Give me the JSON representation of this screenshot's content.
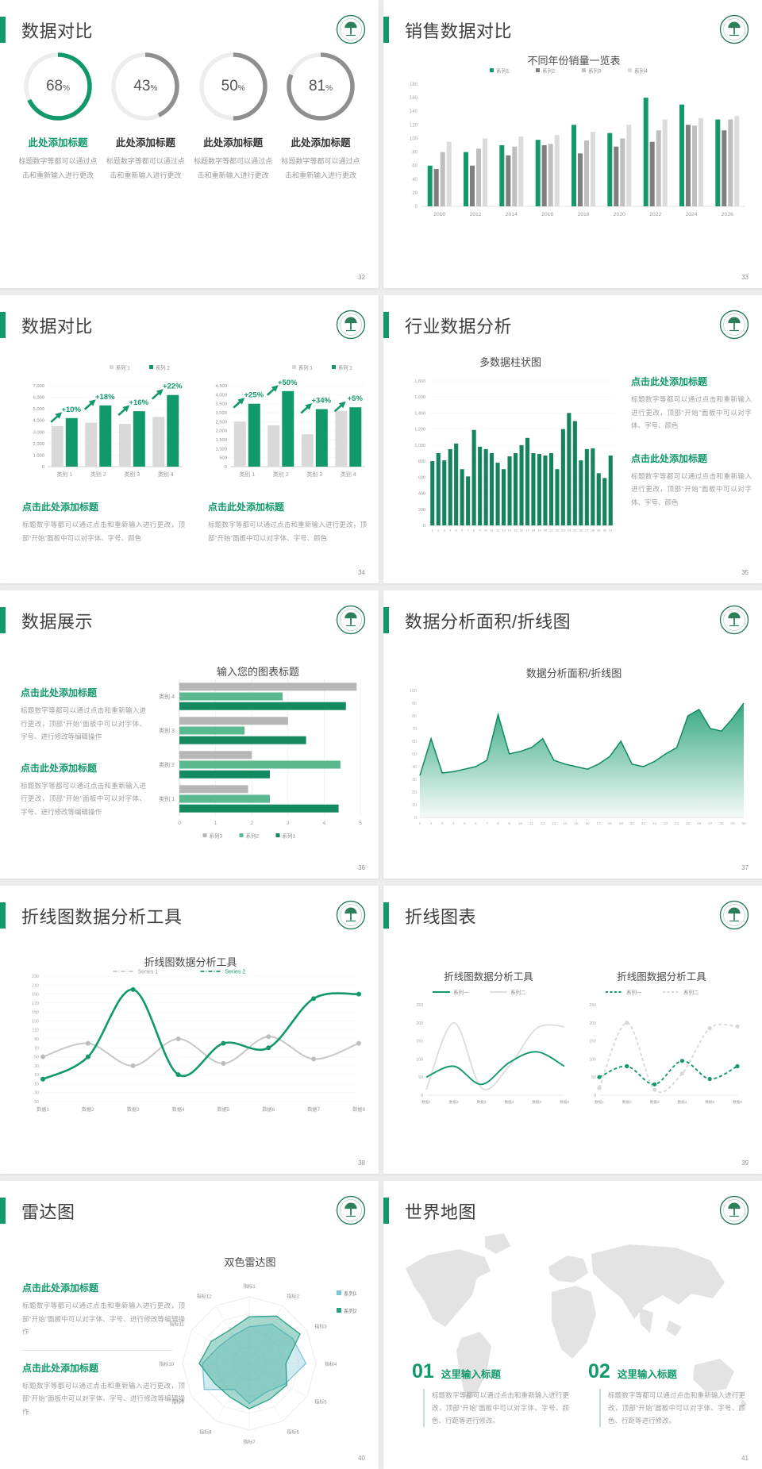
{
  "accent": "#12996b",
  "text_dark": "#3e3e3e",
  "text_gray": "#9f9f9f",
  "slides": [
    {
      "title": "数据对比",
      "page": "32",
      "items": [
        {
          "pct": "68",
          "unit": "%",
          "value": 68,
          "ring": "#12996b",
          "heading_color": "#12996b",
          "heading": "此处添加标题",
          "desc": "标题数字等都可以通过点击和重新输入进行更改"
        },
        {
          "pct": "43",
          "unit": "%",
          "value": 43,
          "ring": "#8f8f8f",
          "heading_color": "#333333",
          "heading": "此处添加标题",
          "desc": "标题数字等都可以通过点击和重新输入进行更改"
        },
        {
          "pct": "50",
          "unit": "%",
          "value": 50,
          "ring": "#8f8f8f",
          "heading_color": "#333333",
          "heading": "此处添加标题",
          "desc": "标题数字等都可以通过点击和重新输入进行更改"
        },
        {
          "pct": "81",
          "unit": "%",
          "value": 81,
          "ring": "#8f8f8f",
          "heading_color": "#333333",
          "heading": "此处添加标题",
          "desc": "标题数字等都可以通过点击和重新输入进行更改"
        }
      ]
    },
    {
      "title": "销售数据对比",
      "page": "33"
    },
    {
      "title": "数据对比",
      "page": "34",
      "blocks": [
        {
          "heading": "点击此处添加标题",
          "body": "标题数字等都可以通过点击和重新输入进行更改，顶部“开始”面板中可以对字体、字号、颜色"
        },
        {
          "heading": "点击此处添加标题",
          "body": "标题数字等都可以通过点击和重新输入进行更改，顶部“开始”面板中可以对字体、字号、颜色"
        }
      ]
    },
    {
      "title": "行业数据分析",
      "page": "35",
      "blocks": [
        {
          "heading": "点击此处添加标题",
          "body": "标题数字等都可以通过点击和重新输入进行更改，顶部“开始”面板中可以对字体、字号、颜色"
        },
        {
          "heading": "点击此处添加标题",
          "body": "标题数字等都可以通过点击和重新输入进行更改，顶部“开始”面板中可以对字体、字号、颜色"
        }
      ]
    },
    {
      "title": "数据展示",
      "page": "36",
      "blocks": [
        {
          "heading": "点击此处添加标题",
          "body": "标题数字等都可以通过点击和重新输入进行更改，顶部“开始”面板中可以对字体、字号、进行修改等编辑操作"
        },
        {
          "heading": "点击此处添加标题",
          "body": "标题数字等都可以通过点击和重新输入进行更改，顶部“开始”面板中可以对字体、字号、进行修改等编辑操作"
        }
      ]
    },
    {
      "title": "数据分析面积/折线图",
      "page": "37"
    },
    {
      "title": "折线图数据分析工具",
      "page": "38"
    },
    {
      "title": "折线图表",
      "page": "39"
    },
    {
      "title": "雷达图",
      "page": "40",
      "blocks": [
        {
          "heading": "点击此处添加标题",
          "body": "标题数字等都可以通过点击和重新输入进行更改，顶部“开始”面板中可以对字体、字号、进行修改等编辑操作"
        },
        {
          "heading": "点击此处添加标题",
          "body": "标题数字等都可以通过点击和重新输入进行更改，顶部“开始”面板中可以对字体、字号、进行修改等编辑操作"
        }
      ]
    },
    {
      "title": "世界地图",
      "page": "41",
      "blocks": [
        {
          "num": "01",
          "heading": "这里输入标题",
          "body": "标题数字等都可以通过点击和重新输入进行更改，顶部“开始”面板中可以对字体、字号、颜色、行距等进行修改。"
        },
        {
          "num": "02",
          "heading": "这里输入标题",
          "body": "标题数字等都可以通过点击和重新输入进行更改，顶部“开始”面板中可以对字体、字号、颜色、行距等进行修改。"
        }
      ]
    }
  ],
  "chart_data": [
    {
      "container": "c-sales",
      "type": "bar",
      "title": "不同年份销量一览表",
      "legend": [
        "系列1",
        "系列2",
        "系列3",
        "系列4"
      ],
      "colors": [
        "#12996b",
        "#7f7f7f",
        "#bfbfbf",
        "#dcdcdc"
      ],
      "categories": [
        "2010",
        "2012",
        "2014",
        "2016",
        "2018",
        "2020",
        "2022",
        "2024",
        "2026"
      ],
      "series": [
        {
          "name": "系列1",
          "values": [
            60,
            80,
            90,
            98,
            120,
            108,
            160,
            150,
            128
          ]
        },
        {
          "name": "系列2",
          "values": [
            55,
            60,
            75,
            90,
            78,
            88,
            95,
            120,
            112
          ]
        },
        {
          "name": "系列3",
          "values": [
            80,
            85,
            88,
            92,
            97,
            100,
            112,
            119,
            128
          ]
        },
        {
          "name": "系列4",
          "values": [
            95,
            100,
            103,
            105,
            110,
            120,
            128,
            130,
            133
          ]
        }
      ],
      "ylim": [
        0,
        180
      ],
      "ystep": 20
    },
    {
      "container": "c-arrow1",
      "type": "bar",
      "legend": [
        "系列 1",
        "系列 2"
      ],
      "colors": [
        "#d9d9d9",
        "#12996b"
      ],
      "categories": [
        "类别 1",
        "类别 2",
        "类别 3",
        "类别 4"
      ],
      "series": [
        {
          "name": "系列 1",
          "values": [
            3500,
            3800,
            3700,
            4300
          ]
        },
        {
          "name": "系列 2",
          "values": [
            4200,
            5300,
            4800,
            6200
          ]
        }
      ],
      "labels": [
        "+10%",
        "+18%",
        "+16%",
        "+22%"
      ],
      "ylim": [
        0,
        7000
      ],
      "ystep": 1000
    },
    {
      "container": "c-arrow2",
      "type": "bar",
      "legend": [
        "系列 1",
        "系列 2"
      ],
      "colors": [
        "#d9d9d9",
        "#12996b"
      ],
      "categories": [
        "类别 1",
        "类别 2",
        "类别 3",
        "类别 4"
      ],
      "series": [
        {
          "name": "系列 1",
          "values": [
            2500,
            2300,
            1800,
            3100
          ]
        },
        {
          "name": "系列 2",
          "values": [
            3500,
            4200,
            3200,
            3300
          ]
        }
      ],
      "labels": [
        "+25%",
        "+50%",
        "+34%",
        "+5%"
      ],
      "ylim": [
        0,
        4500
      ],
      "ystep": 500
    },
    {
      "container": "c-multi",
      "type": "bar",
      "title": "多数据柱状图",
      "color": "#15835c",
      "categories": [
        "1",
        "2",
        "3",
        "4",
        "5",
        "6",
        "7",
        "8",
        "9",
        "10",
        "11",
        "12",
        "13",
        "14",
        "15",
        "16",
        "17",
        "18",
        "19",
        "20",
        "21",
        "22",
        "23",
        "24",
        "25",
        "26",
        "27",
        "28",
        "29",
        "30",
        "31"
      ],
      "values": [
        800,
        900,
        810,
        950,
        1020,
        700,
        610,
        1190,
        980,
        950,
        900,
        780,
        700,
        860,
        900,
        1000,
        1090,
        900,
        890,
        870,
        900,
        700,
        1200,
        1400,
        1300,
        810,
        950,
        960,
        650,
        590,
        870
      ],
      "ylim": [
        0,
        1800
      ],
      "ystep": 200
    },
    {
      "container": "c-hbar",
      "type": "bar",
      "title": "输入您的图表标题",
      "legend": [
        "系列3",
        "系列2",
        "系列1"
      ],
      "colors": [
        "#b7b7b7",
        "#5ab98e",
        "#158a60"
      ],
      "categories": [
        "类别 4",
        "类别 3",
        "类别 2",
        "类别 1"
      ],
      "series": [
        {
          "name": "系列3",
          "values": [
            4.9,
            3.0,
            2.0,
            1.9
          ]
        },
        {
          "name": "系列2",
          "values": [
            2.85,
            1.8,
            4.45,
            2.5
          ]
        },
        {
          "name": "系列1",
          "values": [
            4.6,
            3.5,
            2.5,
            4.4
          ]
        }
      ],
      "xlim": [
        0,
        5
      ]
    },
    {
      "container": "c-area",
      "type": "area",
      "title": "数据分析面积/折线图",
      "x": [
        1,
        2,
        3,
        4,
        5,
        6,
        7,
        8,
        9,
        10,
        11,
        12,
        13,
        14,
        15,
        16,
        17,
        18,
        19,
        20,
        21,
        22,
        23,
        24,
        25,
        26,
        27,
        28,
        29,
        30
      ],
      "values": [
        33,
        62,
        35,
        36,
        38,
        40,
        45,
        81,
        50,
        52,
        55,
        62,
        45,
        42,
        40,
        38,
        42,
        48,
        60,
        42,
        40,
        44,
        50,
        55,
        80,
        85,
        70,
        68,
        78,
        90
      ],
      "ylim": [
        0,
        100
      ],
      "ystep": 10,
      "color": "#12996b"
    },
    {
      "container": "c-bigline",
      "type": "line",
      "title": "折线图数据分析工具",
      "legend": [
        "Series 1",
        "Series 2"
      ],
      "categories": [
        "数据1",
        "数据2",
        "数据3",
        "数据4",
        "数据5",
        "数据6",
        "数据7",
        "数据8"
      ],
      "series": [
        {
          "name": "Series 1",
          "color": "#c7c7c7",
          "values": [
            50,
            80,
            30,
            90,
            35,
            95,
            45,
            80
          ]
        },
        {
          "name": "Series 2",
          "color": "#12996b",
          "values": [
            0,
            50,
            200,
            10,
            80,
            70,
            180,
            190
          ]
        }
      ],
      "ylim": [
        -50,
        230
      ],
      "ystep": 20
    },
    {
      "container": "c-mini1",
      "type": "line",
      "title": "折线图数据分析工具",
      "legend": [
        "系列一",
        "系列二"
      ],
      "dashed": false,
      "categories": [
        "数据1",
        "数据2",
        "数据3",
        "数据4",
        "数据5",
        "数据6"
      ],
      "series": [
        {
          "name": "系列一",
          "color": "#12996b",
          "values": [
            50,
            80,
            30,
            90,
            120,
            80
          ]
        },
        {
          "name": "系列二",
          "color": "#dedede",
          "values": [
            15,
            200,
            20,
            80,
            185,
            190
          ]
        }
      ],
      "ylim": [
        0,
        250
      ],
      "ystep": 50
    },
    {
      "container": "c-mini2",
      "type": "line",
      "title": "折线图数据分析工具",
      "legend": [
        "系列一",
        "系列二"
      ],
      "dashed": true,
      "categories": [
        "数据1",
        "数据2",
        "数据3",
        "数据4",
        "数据5",
        "数据6"
      ],
      "series": [
        {
          "name": "系列一",
          "color": "#12996b",
          "values": [
            50,
            80,
            30,
            95,
            45,
            80
          ]
        },
        {
          "name": "系列二",
          "color": "#d8d8d8",
          "values": [
            20,
            200,
            15,
            60,
            185,
            190
          ]
        }
      ],
      "ylim": [
        0,
        250
      ],
      "ystep": 50
    },
    {
      "container": "c-radar",
      "type": "radar",
      "title": "双色雷达图",
      "legend": [
        "系列1",
        "系列2"
      ],
      "colors": [
        "#7cc5d7",
        "#2aa187"
      ],
      "axes": [
        "指标1",
        "指标2",
        "指标3",
        "指标4",
        "指标5",
        "指标6",
        "指标7",
        "指标8",
        "指标9",
        "指标10",
        "指标11",
        "指标12"
      ],
      "series": [
        {
          "name": "系列1",
          "values": [
            55,
            68,
            75,
            85,
            62,
            50,
            60,
            45,
            78,
            70,
            52,
            48
          ]
        },
        {
          "name": "系列2",
          "values": [
            70,
            82,
            88,
            55,
            65,
            62,
            68,
            58,
            60,
            75,
            66,
            58
          ]
        }
      ],
      "rmax": 100
    },
    {
      "container": "c-map",
      "type": "map",
      "color": "#e3e3e3"
    }
  ]
}
